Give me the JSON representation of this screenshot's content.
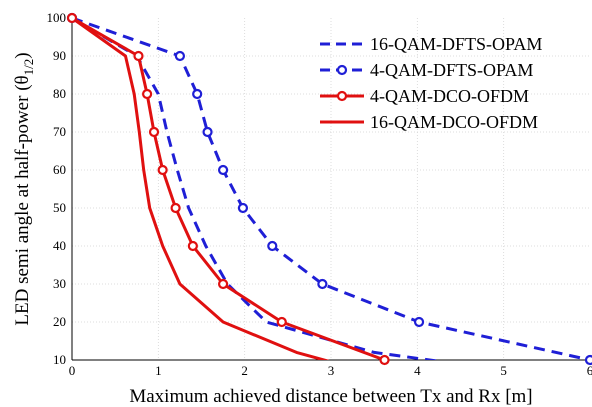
{
  "chart_data": {
    "type": "line",
    "xlabel": "Maximum achieved distance between Tx and Rx [m]",
    "ylabel": "LED semi angle at half-power (θ",
    "ylabel_subscript": "1/2",
    "ylabel_close": ")",
    "xlim": [
      0,
      6
    ],
    "ylim": [
      10,
      100
    ],
    "xticks": [
      0,
      1,
      2,
      3,
      4,
      5,
      6
    ],
    "yticks": [
      10,
      20,
      30,
      40,
      50,
      60,
      70,
      80,
      90,
      100
    ],
    "grid": true,
    "legend_position": "top-right",
    "series": [
      {
        "name": "16-QAM-DFTS-OPAM",
        "color": "#1f1fd6",
        "style": "dashed",
        "marker": "none",
        "points": [
          [
            0,
            100
          ],
          [
            0.75,
            90
          ],
          [
            1.0,
            80
          ],
          [
            1.1,
            70
          ],
          [
            1.22,
            60
          ],
          [
            1.35,
            50
          ],
          [
            1.55,
            40
          ],
          [
            1.8,
            30
          ],
          [
            2.25,
            20
          ],
          [
            3.5,
            12
          ],
          [
            4.3,
            9.5
          ]
        ]
      },
      {
        "name": "4-QAM-DFTS-OPAM",
        "color": "#1f1fd6",
        "style": "dashed",
        "marker": "circle",
        "points": [
          [
            0,
            100
          ],
          [
            1.25,
            90
          ],
          [
            1.45,
            80
          ],
          [
            1.57,
            70
          ],
          [
            1.75,
            60
          ],
          [
            1.98,
            50
          ],
          [
            2.32,
            40
          ],
          [
            2.9,
            30
          ],
          [
            4.02,
            20
          ],
          [
            6.0,
            10
          ]
        ]
      },
      {
        "name": "4-QAM-DCO-OFDM",
        "color": "#e01010",
        "style": "solid",
        "marker": "circle",
        "points": [
          [
            0,
            100
          ],
          [
            0.77,
            90
          ],
          [
            0.87,
            80
          ],
          [
            0.95,
            70
          ],
          [
            1.05,
            60
          ],
          [
            1.2,
            50
          ],
          [
            1.4,
            40
          ],
          [
            1.75,
            30
          ],
          [
            2.43,
            20
          ],
          [
            3.62,
            10
          ]
        ]
      },
      {
        "name": "16-QAM-DCO-OFDM",
        "color": "#e01010",
        "style": "solid",
        "marker": "none",
        "points": [
          [
            0,
            100
          ],
          [
            0.62,
            90
          ],
          [
            0.72,
            80
          ],
          [
            0.78,
            70
          ],
          [
            0.83,
            60
          ],
          [
            0.9,
            50
          ],
          [
            1.05,
            40
          ],
          [
            1.25,
            30
          ],
          [
            1.75,
            20
          ],
          [
            2.6,
            12
          ],
          [
            3.0,
            9.5
          ]
        ]
      }
    ]
  }
}
